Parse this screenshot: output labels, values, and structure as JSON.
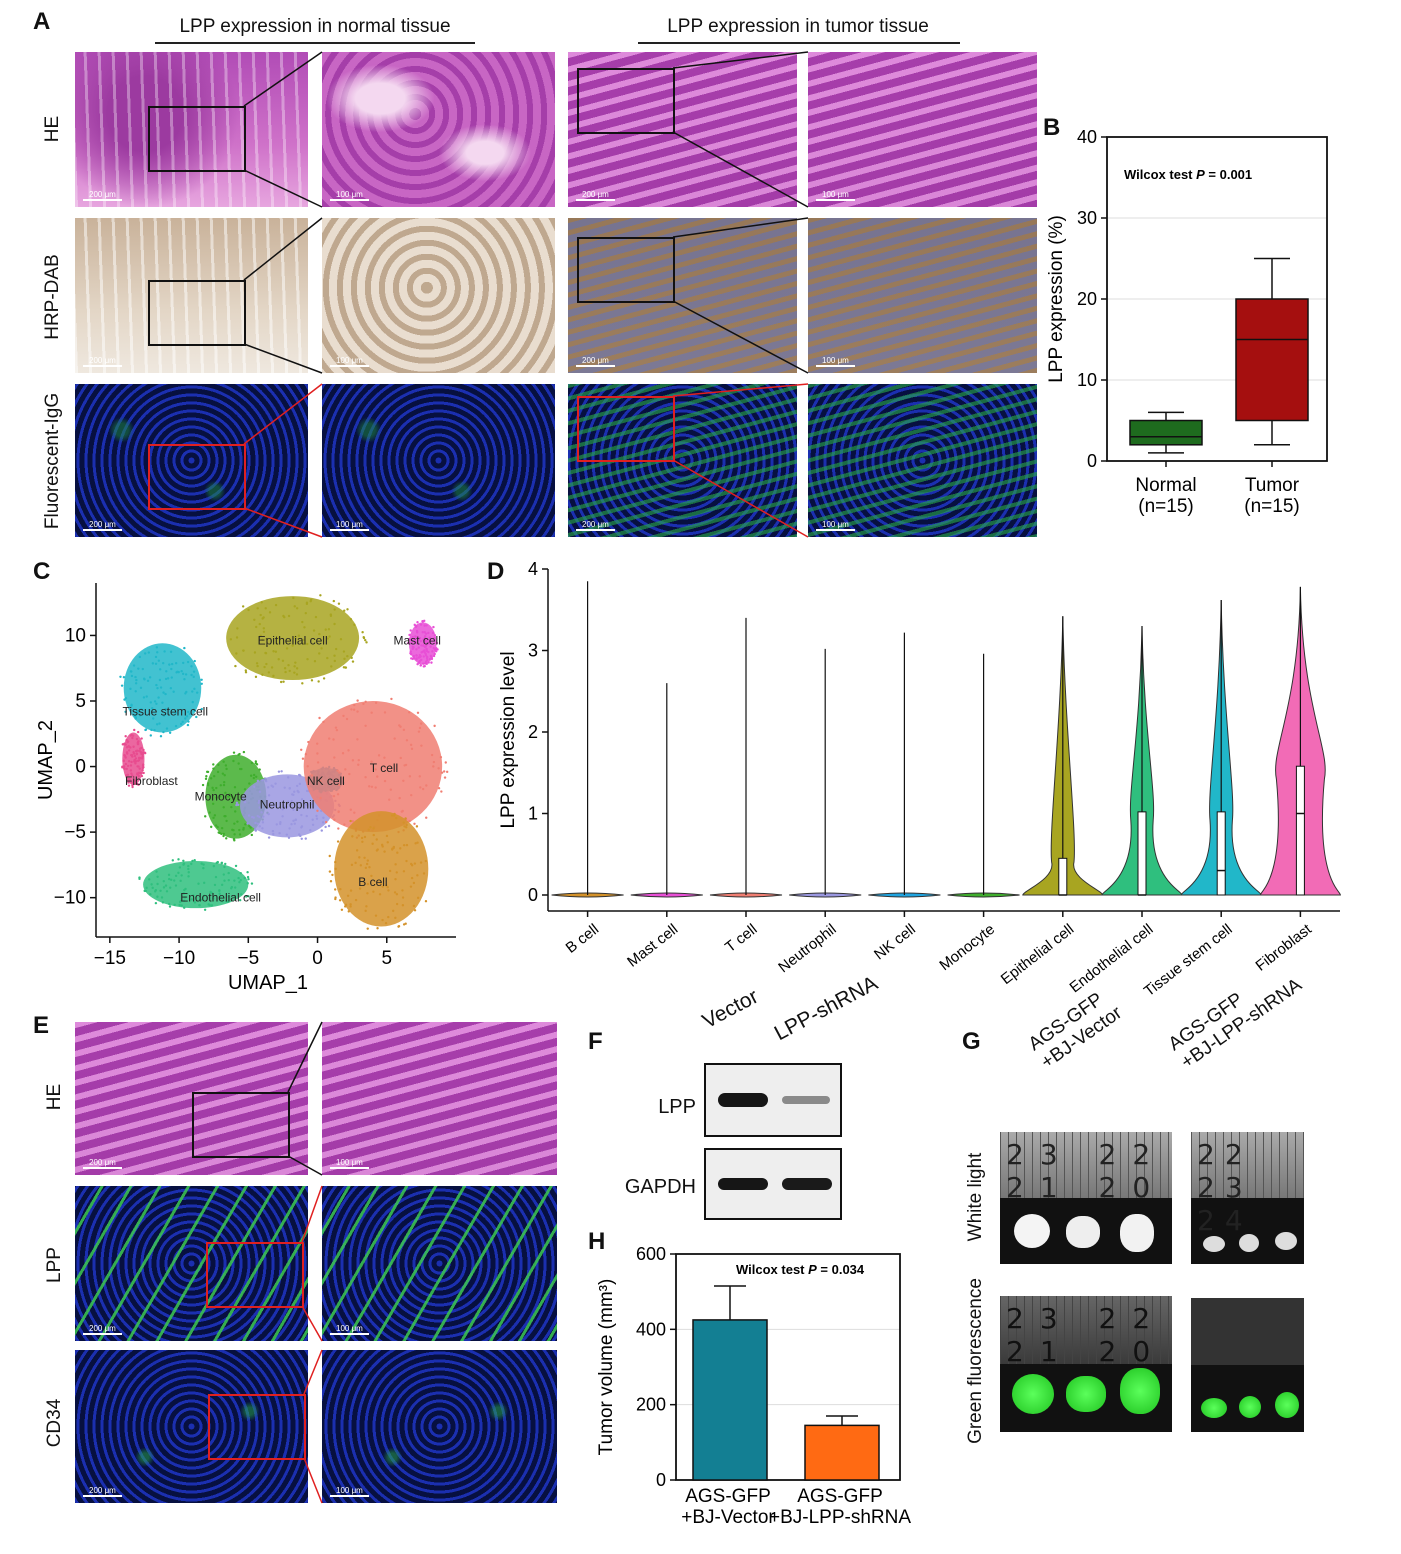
{
  "panels": {
    "A": "A",
    "B": "B",
    "C": "C",
    "D": "D",
    "E": "E",
    "F": "F",
    "G": "G",
    "H": "H"
  },
  "panel_a": {
    "header_normal": "LPP expression in normal tissue",
    "header_tumor": "LPP expression in tumor tissue",
    "rows": [
      "HE",
      "HRP-DAB",
      "Fluorescent-IgG"
    ]
  },
  "panel_e": {
    "rows": [
      "HE",
      "LPP",
      "CD34"
    ]
  },
  "panel_f": {
    "columns": [
      "Vector",
      "LPP-shRNA"
    ],
    "rows": [
      "LPP",
      "GAPDH"
    ]
  },
  "panel_g": {
    "columns": [
      "AGS-GFP\n+BJ-Vector",
      "AGS-GFP\n+BJ-LPP-shRNA"
    ],
    "rows": [
      "White light",
      "Green fluorescence"
    ],
    "ruler_left": "23 22 21 20",
    "ruler_right": "22 23 24"
  },
  "chart_data": [
    {
      "panel": "B",
      "type": "box",
      "annotation_prefix": "Wilcox test ",
      "annotation_p": "P",
      "annotation_value": " = 0.001",
      "ylabel": "LPP expression (%)",
      "ylim": [
        0,
        40
      ],
      "yticks": [
        0,
        10,
        20,
        30,
        40
      ],
      "categories": [
        "Normal\n(n=15)",
        "Tumor\n(n=15)"
      ],
      "boxes": [
        {
          "min": 1,
          "q1": 2,
          "median": 3,
          "q3": 5,
          "max": 6,
          "color": "#1e6b1e"
        },
        {
          "min": 2,
          "q1": 5,
          "median": 15,
          "q3": 20,
          "max": 25,
          "color": "#a50f0f"
        }
      ]
    },
    {
      "panel": "C",
      "type": "scatter",
      "xlabel": "UMAP_1",
      "ylabel": "UMAP_2",
      "xlim": [
        -16,
        10
      ],
      "ylim": [
        -13,
        14
      ],
      "xticks": [
        -15,
        -10,
        -5,
        0,
        5
      ],
      "yticks": [
        -10,
        -5,
        0,
        5,
        10
      ],
      "clusters": [
        {
          "name": "Epithelial cell",
          "color": "#a8a521",
          "cx": -1.8,
          "cy": 9.8,
          "rx": 4.8,
          "ry": 3.2,
          "label_x": -1.8,
          "label_y": 9.6
        },
        {
          "name": "Mast cell",
          "color": "#e84fd6",
          "cx": 7.6,
          "cy": 9.4,
          "rx": 1.0,
          "ry": 1.6,
          "label_x": 7.2,
          "label_y": 9.6
        },
        {
          "name": "Tissue stem cell",
          "color": "#21b7c9",
          "cx": -11.2,
          "cy": 6.0,
          "rx": 2.8,
          "ry": 3.4,
          "label_x": -11.0,
          "label_y": 4.2
        },
        {
          "name": "Fibroblast",
          "color": "#e84c8f",
          "cx": -13.3,
          "cy": 0.6,
          "rx": 0.8,
          "ry": 2.0,
          "label_x": -12.0,
          "label_y": -1.1
        },
        {
          "name": "Monocyte",
          "color": "#3fae2d",
          "cx": -5.9,
          "cy": -2.3,
          "rx": 2.2,
          "ry": 3.2,
          "label_x": -7.0,
          "label_y": -2.3
        },
        {
          "name": "Neutrophil",
          "color": "#9a97e0",
          "cx": -2.2,
          "cy": -3.0,
          "rx": 3.4,
          "ry": 2.4,
          "label_x": -2.2,
          "label_y": -2.9
        },
        {
          "name": "NK cell",
          "color": "#1fa4e0",
          "cx": 0.6,
          "cy": -1.0,
          "rx": 1.2,
          "ry": 0.9,
          "label_x": 0.6,
          "label_y": -1.1
        },
        {
          "name": "T cell",
          "color": "#f07e72",
          "cx": 4.0,
          "cy": 0.0,
          "rx": 5.0,
          "ry": 5.0,
          "label_x": 4.8,
          "label_y": -0.1
        },
        {
          "name": "B cell",
          "color": "#d4922a",
          "cx": 4.6,
          "cy": -7.8,
          "rx": 3.4,
          "ry": 4.4,
          "label_x": 4.0,
          "label_y": -8.8
        },
        {
          "name": "Endothelial cell",
          "color": "#2fbf7e",
          "cx": -8.8,
          "cy": -9.0,
          "rx": 3.8,
          "ry": 1.8,
          "label_x": -7.0,
          "label_y": -10.0
        }
      ]
    },
    {
      "panel": "D",
      "type": "violin",
      "ylabel": "LPP expression level",
      "ylim": [
        0,
        4
      ],
      "yticks": [
        0,
        1,
        2,
        3,
        4
      ],
      "categories": [
        "B cell",
        "Mast cell",
        "T cell",
        "Neutrophil",
        "NK cell",
        "Monocyte",
        "Epithelial cell",
        "Endothelial cell",
        "Tissue stem cell",
        "Fibroblast"
      ],
      "max": [
        3.85,
        2.6,
        3.4,
        3.02,
        3.22,
        2.96,
        3.42,
        3.3,
        3.62,
        3.78
      ],
      "q3": [
        0,
        0,
        0,
        0,
        0,
        0,
        0.45,
        1.02,
        1.02,
        1.58
      ],
      "median": [
        0,
        0,
        0,
        0,
        0,
        0,
        0,
        0,
        0.3,
        1.0
      ],
      "colors": [
        "#d4922a",
        "#e84fd6",
        "#f07e72",
        "#9a97e0",
        "#1fa4e0",
        "#3fae2d",
        "#a8a521",
        "#2fbf7e",
        "#21b7c9",
        "#f26bb6"
      ]
    },
    {
      "panel": "H",
      "type": "bar",
      "annotation_prefix": "Wilcox test ",
      "annotation_p": "P",
      "annotation_value": " = 0.034",
      "ylabel": "Tumor volume (mm³)",
      "ylim": [
        0,
        600
      ],
      "yticks": [
        0,
        200,
        400,
        600
      ],
      "categories": [
        "AGS-GFP\n+BJ-Vector",
        "AGS-GFP\n+BJ-LPP-shRNA"
      ],
      "values": [
        425,
        145
      ],
      "errors": [
        90,
        25
      ],
      "colors": [
        "#137f93",
        "#ff6a13"
      ]
    }
  ]
}
